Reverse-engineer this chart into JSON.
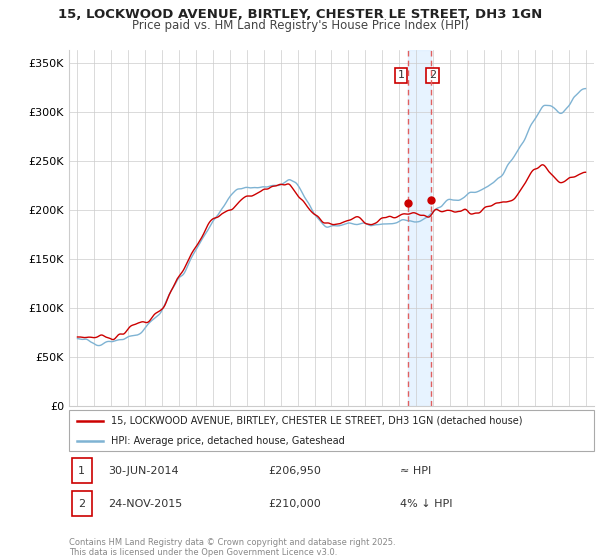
{
  "title": "15, LOCKWOOD AVENUE, BIRTLEY, CHESTER LE STREET, DH3 1GN",
  "subtitle": "Price paid vs. HM Land Registry's House Price Index (HPI)",
  "legend_line1": "15, LOCKWOOD AVENUE, BIRTLEY, CHESTER LE STREET, DH3 1GN (detached house)",
  "legend_line2": "HPI: Average price, detached house, Gateshead",
  "annotation1": {
    "label": "1",
    "date": "30-JUN-2014",
    "price": "£206,950",
    "hpi": "≈ HPI"
  },
  "annotation2": {
    "label": "2",
    "date": "24-NOV-2015",
    "price": "£210,000",
    "hpi": "4% ↓ HPI"
  },
  "footer": "Contains HM Land Registry data © Crown copyright and database right 2025.\nThis data is licensed under the Open Government Licence v3.0.",
  "sale1_year": 2014.5,
  "sale2_year": 2015.9,
  "ylim": [
    0,
    362500
  ],
  "xlim_start": 1994.5,
  "xlim_end": 2025.5,
  "red_color": "#cc0000",
  "blue_color": "#7fb3d3",
  "shade_color": "#ddeeff",
  "dashed_color": "#e06060"
}
